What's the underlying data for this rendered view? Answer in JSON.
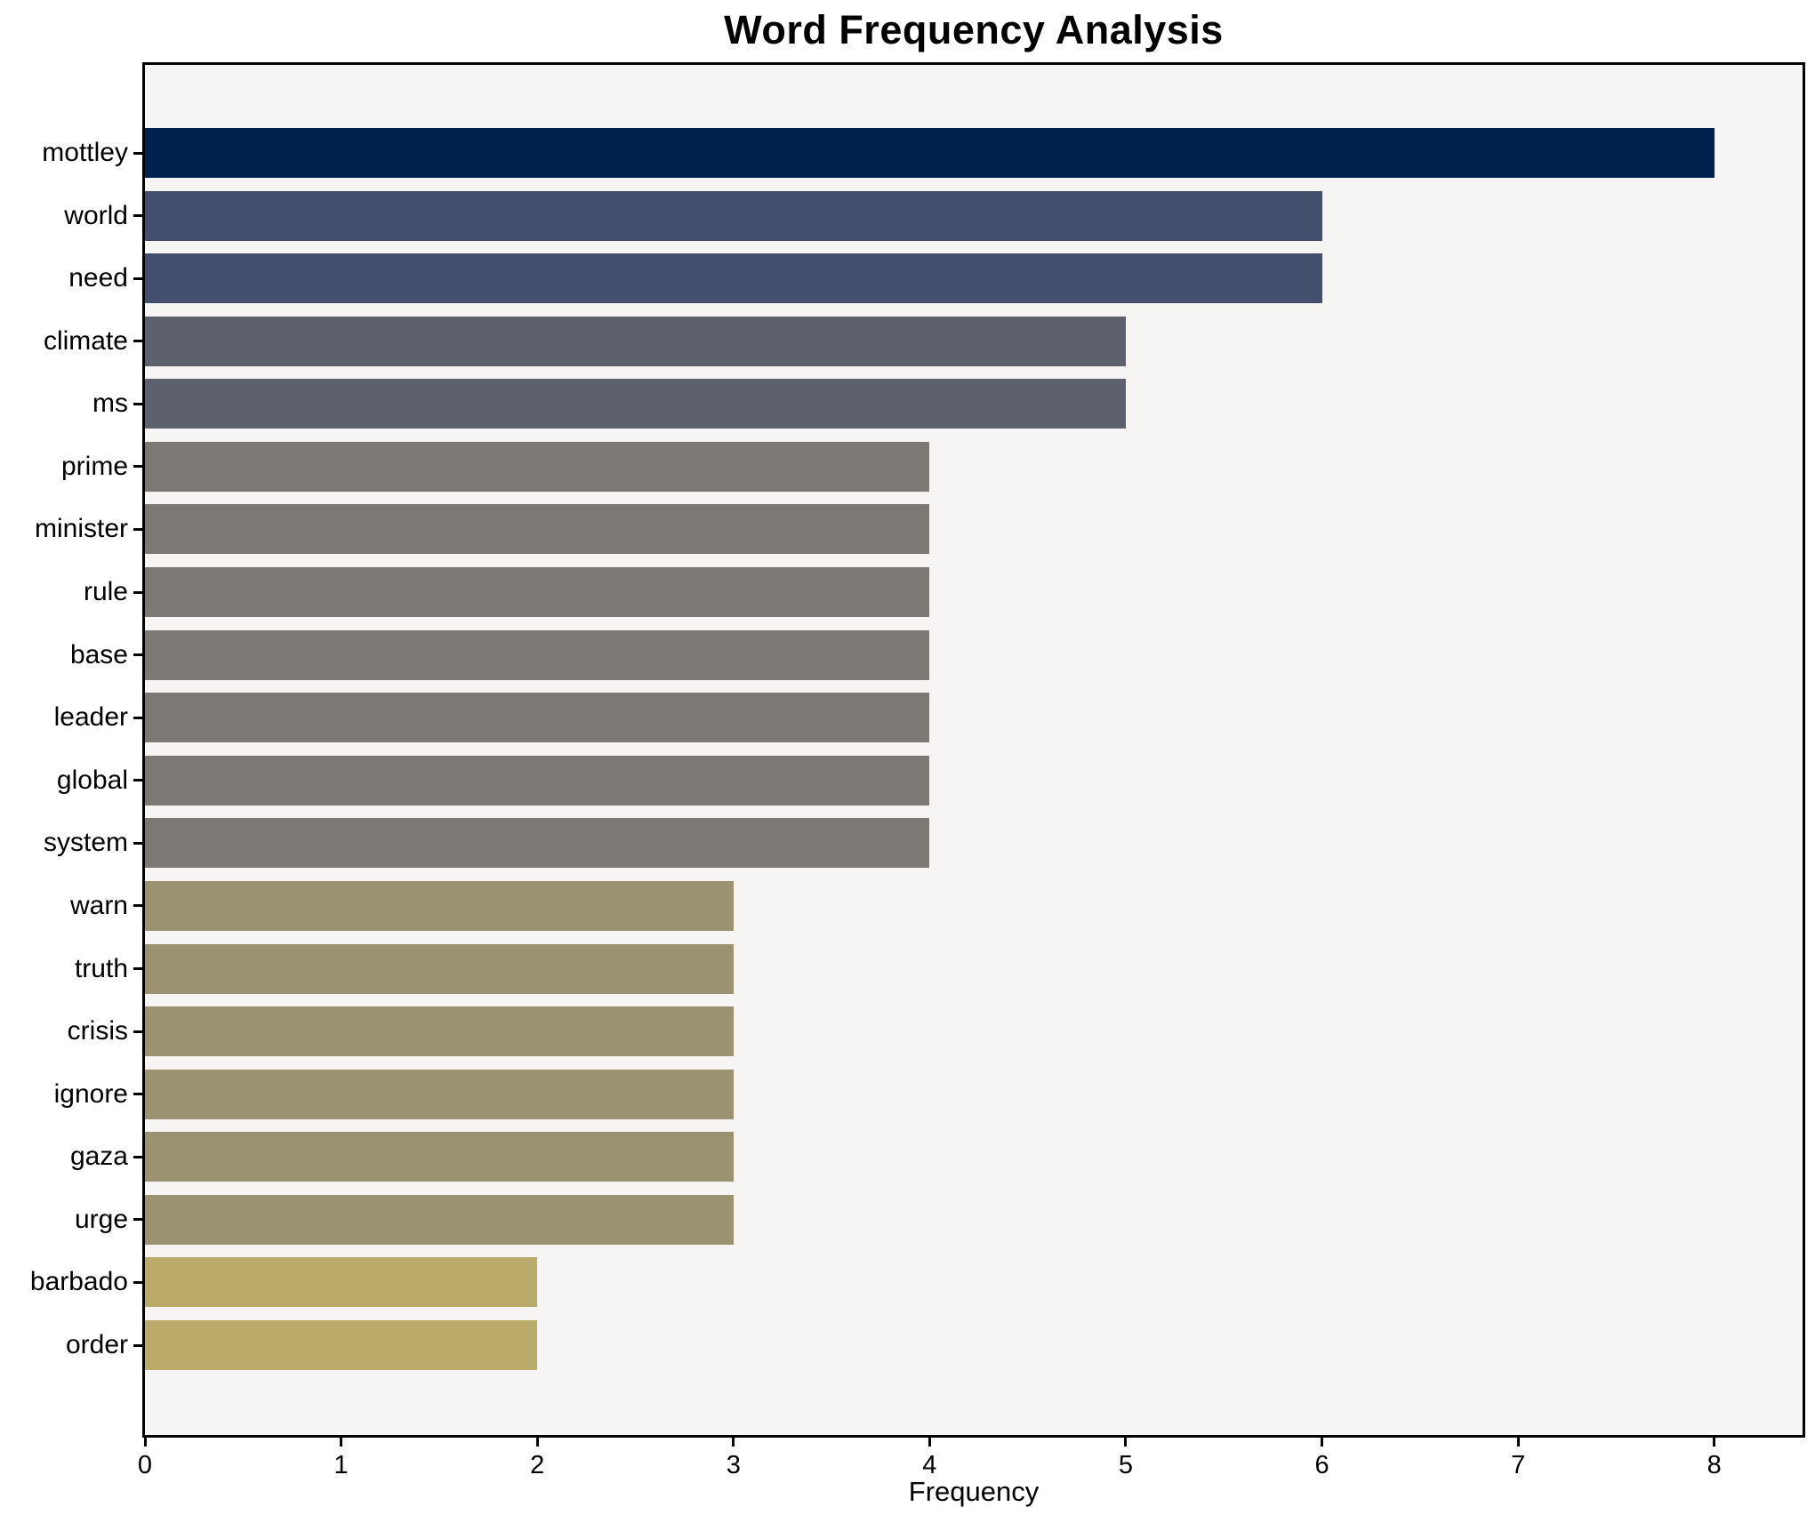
{
  "chart_data": {
    "type": "bar",
    "orientation": "horizontal",
    "title": "Word Frequency Analysis",
    "xlabel": "Frequency",
    "ylabel": "",
    "grid": false,
    "legend": null,
    "xlim": [
      0,
      8.45
    ],
    "xticks": [
      0,
      1,
      2,
      3,
      4,
      5,
      6,
      7,
      8
    ],
    "categories": [
      "mottley",
      "world",
      "need",
      "climate",
      "ms",
      "prime",
      "minister",
      "rule",
      "base",
      "leader",
      "global",
      "system",
      "warn",
      "truth",
      "crisis",
      "ignore",
      "gaza",
      "urge",
      "barbado",
      "order"
    ],
    "values": [
      8,
      6,
      6,
      5,
      5,
      4,
      4,
      4,
      4,
      4,
      4,
      4,
      3,
      3,
      3,
      3,
      3,
      3,
      2,
      2
    ],
    "colors_by_value": {
      "8": "#00224e",
      "6": "#444f6d",
      "5": "#5c616d",
      "4": "#7c7974",
      "3": "#9b9271",
      "2": "#bbab6b"
    },
    "plot_background": "#f6f5f4",
    "figure_background": "#ffffff",
    "spine_color": "#000000"
  }
}
